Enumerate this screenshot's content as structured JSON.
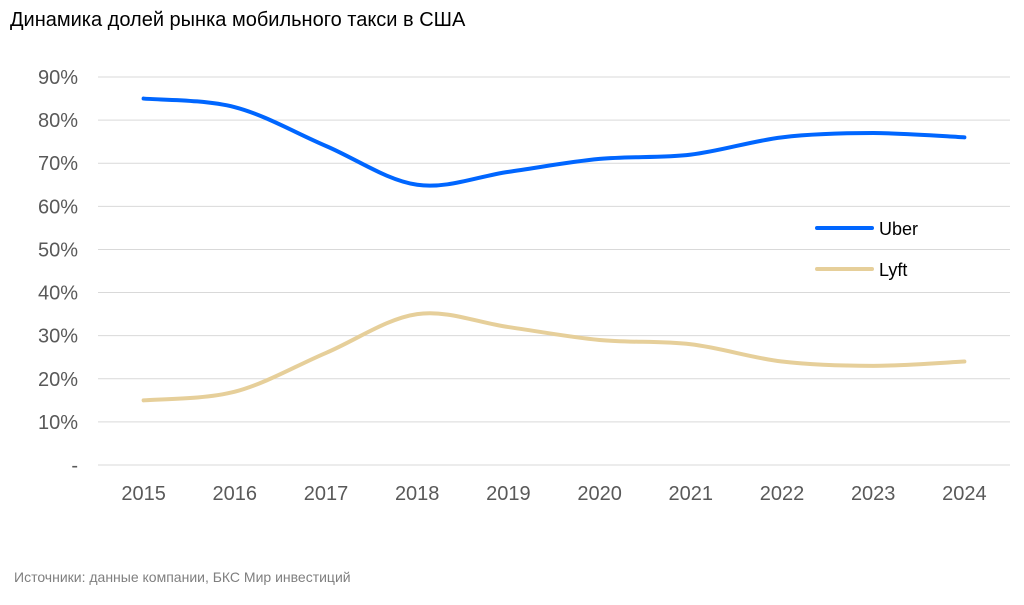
{
  "chart_data": {
    "type": "line",
    "title": "Динамика долей рынка мобильного такси в США",
    "x": [
      "2015",
      "2016",
      "2017",
      "2018",
      "2019",
      "2020",
      "2021",
      "2022",
      "2023",
      "2024"
    ],
    "series": [
      {
        "name": "Uber",
        "color": "#0066ff",
        "values": [
          85,
          83,
          74,
          65,
          68,
          71,
          72,
          76,
          77,
          76
        ]
      },
      {
        "name": "Lyft",
        "color": "#e6cf9a",
        "values": [
          15,
          17,
          26,
          35,
          32,
          29,
          28,
          24,
          23,
          24
        ]
      }
    ],
    "yticks": [
      "-",
      "10%",
      "20%",
      "30%",
      "40%",
      "50%",
      "60%",
      "70%",
      "80%",
      "90%"
    ],
    "ylim": [
      0,
      90
    ],
    "grid": true,
    "legend": "right",
    "xlabel": "",
    "ylabel": ""
  },
  "source": "Источники: данные компании, БКС Мир инвестиций"
}
